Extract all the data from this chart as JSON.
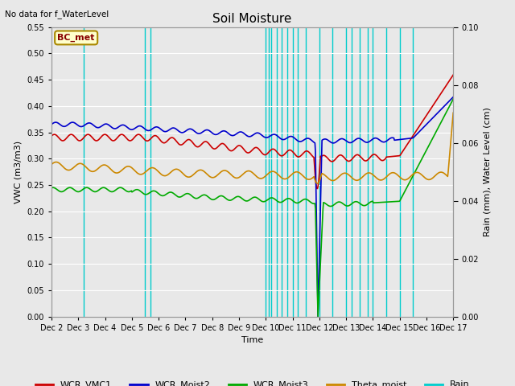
{
  "title": "Soil Moisture",
  "top_left_text": "No data for f_WaterLevel",
  "ylabel_left": "VWC (m3/m3)",
  "ylabel_right": "Rain (mm), Water Level (cm)",
  "xlabel": "Time",
  "ylim_left": [
    0.0,
    0.55
  ],
  "ylim_right": [
    0.0,
    0.1
  ],
  "yticks_left": [
    0.0,
    0.05,
    0.1,
    0.15,
    0.2,
    0.25,
    0.3,
    0.35,
    0.4,
    0.45,
    0.5,
    0.55
  ],
  "yticks_right": [
    0.0,
    0.02,
    0.04,
    0.06,
    0.08,
    0.1
  ],
  "xtick_labels": [
    "Dec 2",
    "Dec 3",
    "Dec 4",
    "Dec 5",
    "Dec 6",
    "Dec 7",
    "Dec 8",
    "Dec 9",
    "Dec 10",
    "Dec 11",
    "Dec 12",
    "Dec 13",
    "Dec 14",
    "Dec 15",
    "Dec 16",
    "Dec 17"
  ],
  "bc_met_label": "BC_met",
  "legend_entries": [
    "WCR_VMC1",
    "WCR_Moist2",
    "WCR_Moist3",
    "Theta_moist",
    "Rain"
  ],
  "legend_colors": [
    "#cc0000",
    "#0000cc",
    "#00aa00",
    "#cc8800",
    "#00cccc"
  ],
  "background_color": "#e8e8e8",
  "grid_color": "#ffffff",
  "rain_x": [
    1.2,
    3.5,
    3.7,
    8.0,
    8.1,
    8.2,
    8.4,
    8.6,
    8.8,
    9.0,
    9.2,
    9.5,
    10.0,
    10.5,
    11.0,
    11.2,
    11.5,
    11.8,
    12.0,
    12.5,
    13.0,
    13.5
  ],
  "rain_color": "#00cccc",
  "line_width": 1.2
}
